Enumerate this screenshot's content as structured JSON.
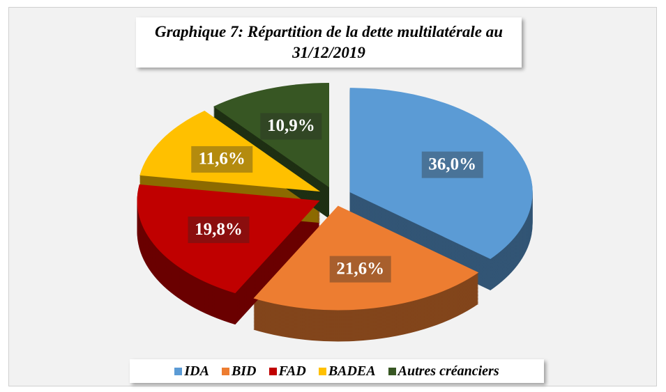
{
  "chart_data": {
    "type": "pie",
    "title": "Graphique 7: Répartition de la dette multilatérale au 31/12/2019",
    "categories": [
      "IDA",
      "BID",
      "FAD",
      "BADEA",
      "Autres créanciers"
    ],
    "values": [
      36.0,
      21.6,
      19.8,
      11.6,
      10.9
    ],
    "value_labels": [
      "36,0%",
      "21,6%",
      "19,8%",
      "11,6%",
      "10,9%"
    ],
    "colors": [
      "#5b9bd5",
      "#ed7d31",
      "#c00000",
      "#ffc000",
      "#375623"
    ],
    "legend": "bottom"
  }
}
